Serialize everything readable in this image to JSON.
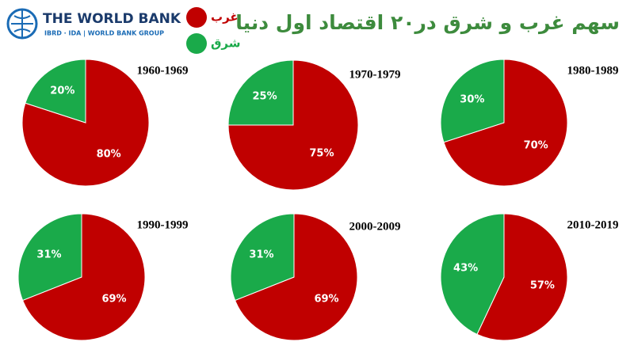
{
  "header": {
    "logo_name": "THE WORLD BANK",
    "logo_sub": "IBRD · IDA | WORLD BANK GROUP",
    "title": "سهم غرب و شرق در۲۰ اقتصاد اول دنیا"
  },
  "chart_data": [
    {
      "type": "pie",
      "title": "1960-1969",
      "categories": [
        "غرب",
        "شرق"
      ],
      "colors": [
        "#c00000",
        "#1aaa4a"
      ],
      "values": [
        80,
        20
      ],
      "value_labels": [
        "80%",
        "20%"
      ]
    },
    {
      "type": "pie",
      "title": "1970-1979",
      "categories": [
        "غرب",
        "شرق"
      ],
      "colors": [
        "#c00000",
        "#1aaa4a"
      ],
      "values": [
        75,
        25
      ],
      "value_labels": [
        "75%",
        "25%"
      ]
    },
    {
      "type": "pie",
      "title": "1980-1989",
      "categories": [
        "غرب",
        "شرق"
      ],
      "colors": [
        "#c00000",
        "#1aaa4a"
      ],
      "values": [
        70,
        30
      ],
      "value_labels": [
        "70%",
        "30%"
      ]
    },
    {
      "type": "pie",
      "title": "1990-1999",
      "categories": [
        "غرب",
        "شرق"
      ],
      "colors": [
        "#c00000",
        "#1aaa4a"
      ],
      "values": [
        69,
        31
      ],
      "value_labels": [
        "69%",
        "31%"
      ]
    },
    {
      "type": "pie",
      "title": "2000-2009",
      "categories": [
        "غرب",
        "شرق"
      ],
      "colors": [
        "#c00000",
        "#1aaa4a"
      ],
      "values": [
        69,
        31
      ],
      "value_labels": [
        "69%",
        "31%"
      ]
    },
    {
      "type": "pie",
      "title": "2010-2019",
      "categories": [
        "غرب",
        "شرق"
      ],
      "colors": [
        "#c00000",
        "#1aaa4a"
      ],
      "values": [
        57,
        43
      ],
      "value_labels": [
        "57%",
        "43%"
      ]
    }
  ]
}
